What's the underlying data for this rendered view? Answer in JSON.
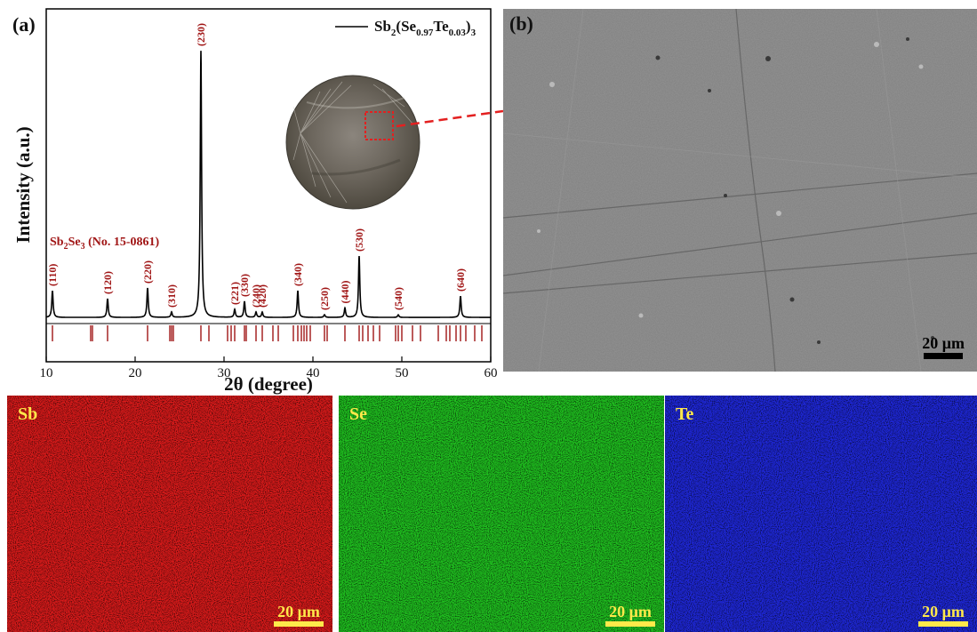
{
  "chart_data": {
    "type": "line",
    "panel_label": "(a)",
    "xlabel": "2θ (degree)",
    "ylabel": "Intensity (a.u.)",
    "xlim": [
      10,
      60
    ],
    "xticks": [
      10,
      20,
      30,
      40,
      50,
      60
    ],
    "legend": {
      "label_base": "Sb",
      "sub1": "2",
      "label_mid": "(Se",
      "sub2": "0.97",
      "label_mid2": "Te",
      "sub3": "0.03",
      "label_end": ")",
      "sub4": "3",
      "placement": "top-right"
    },
    "reference": {
      "base": "Sb",
      "sub1": "2",
      "mid": "Se",
      "sub2": "3",
      "rest": " (No. 15-0861)"
    },
    "peaks": [
      {
        "x": 10.7,
        "y": 0.1,
        "label": "(110)"
      },
      {
        "x": 16.9,
        "y": 0.07,
        "label": "(120)"
      },
      {
        "x": 21.4,
        "y": 0.11,
        "label": "(220)"
      },
      {
        "x": 24.1,
        "y": 0.02,
        "label": "(310)"
      },
      {
        "x": 27.4,
        "y": 1.0,
        "label": "(230)"
      },
      {
        "x": 31.2,
        "y": 0.03,
        "label": "(221)"
      },
      {
        "x": 32.3,
        "y": 0.06,
        "label": "(330)"
      },
      {
        "x": 33.6,
        "y": 0.02,
        "label": "(240)"
      },
      {
        "x": 34.3,
        "y": 0.02,
        "label": "(420)"
      },
      {
        "x": 38.3,
        "y": 0.1,
        "label": "(340)"
      },
      {
        "x": 41.3,
        "y": 0.01,
        "label": "(250)"
      },
      {
        "x": 43.6,
        "y": 0.035,
        "label": "(440)"
      },
      {
        "x": 45.2,
        "y": 0.23,
        "label": "(530)"
      },
      {
        "x": 49.6,
        "y": 0.01,
        "label": "(540)"
      },
      {
        "x": 56.6,
        "y": 0.08,
        "label": "(640)"
      }
    ],
    "reference_lines": [
      10.7,
      15.0,
      15.2,
      16.9,
      21.4,
      23.9,
      24.1,
      24.3,
      27.4,
      28.3,
      30.4,
      30.8,
      31.2,
      32.3,
      32.5,
      33.6,
      34.3,
      35.5,
      36.1,
      37.8,
      38.3,
      38.7,
      39.0,
      39.3,
      39.7,
      41.3,
      41.6,
      43.6,
      45.2,
      45.6,
      46.2,
      46.8,
      47.5,
      49.3,
      49.6,
      50.0,
      51.2,
      52.1,
      54.1,
      55.0,
      55.4,
      56.1,
      56.6,
      57.2,
      58.2,
      59.0
    ]
  },
  "sem": {
    "label": "(b)",
    "scale": "20 μm"
  },
  "maps": [
    {
      "element": "Sb",
      "scale": "20 μm",
      "color": "#d81a1a"
    },
    {
      "element": "Se",
      "scale": "20 μm",
      "color": "#1fbf1f"
    },
    {
      "element": "Te",
      "scale": "20 μm",
      "color": "#1e27d6"
    }
  ],
  "colors": {
    "accent": "#a01515",
    "dashed": "#e32020"
  }
}
